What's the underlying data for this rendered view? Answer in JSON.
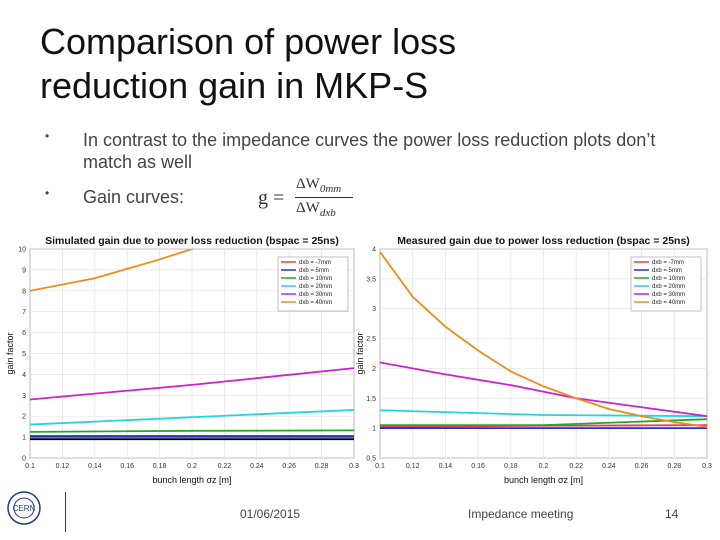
{
  "slide": {
    "title_line1": "Comparison of power loss",
    "title_line2": "reduction gain in MKP-S",
    "bullets": [
      "In contrast to the impedance curves the power loss reduction plots don’t match as well",
      "Gain curves:"
    ],
    "formula": {
      "lhs": "g =",
      "numerator": "ΔW",
      "numerator_sub": "0mm",
      "denominator": "ΔW",
      "denominator_sub": "dxb"
    },
    "footer": {
      "date": "01/06/2015",
      "meeting": "Impedance meeting",
      "page": "14"
    },
    "logo_text": "CERN"
  },
  "chart_data": [
    {
      "type": "line",
      "title": "Simulated gain due to power loss reduction (bspac = 25ns)",
      "xlabel": "bunch length σz [m]",
      "ylabel": "gain factor",
      "xlim": [
        0.1,
        0.3
      ],
      "ylim": [
        0,
        10
      ],
      "xticks": [
        "0.1",
        "0.12",
        "0.14",
        "0.16",
        "0.18",
        "0.2",
        "0.22",
        "0.24",
        "0.26",
        "0.28",
        "0.3"
      ],
      "yticks": [
        "0",
        "1",
        "2",
        "3",
        "4",
        "5",
        "6",
        "7",
        "8",
        "9",
        "10"
      ],
      "grid": true,
      "legend_position": "top-right",
      "series": [
        {
          "name": "dxb = -7mm",
          "color": "#e8403a",
          "x": [
            0.1,
            0.3
          ],
          "y": [
            1.0,
            1.0
          ]
        },
        {
          "name": "dxb = 5mm",
          "color": "#2233cc",
          "x": [
            0.1,
            0.3
          ],
          "y": [
            1.05,
            1.05
          ]
        },
        {
          "name": "dxb = 10mm",
          "color": "#22aa22",
          "x": [
            0.1,
            0.2,
            0.3
          ],
          "y": [
            1.25,
            1.3,
            1.32
          ]
        },
        {
          "name": "dxb = 20mm",
          "color": "#22d4e0",
          "x": [
            0.1,
            0.2,
            0.3
          ],
          "y": [
            1.6,
            1.95,
            2.3
          ]
        },
        {
          "name": "dxb = 30mm",
          "color": "#cc22cc",
          "x": [
            0.1,
            0.2,
            0.3
          ],
          "y": [
            2.8,
            3.5,
            4.3
          ]
        },
        {
          "name": "dxb = 40mm",
          "color": "#f08a1c",
          "x": [
            0.1,
            0.14,
            0.18,
            0.2,
            0.22
          ],
          "y": [
            8.0,
            8.6,
            9.5,
            10.0,
            10.7
          ]
        },
        {
          "name": "",
          "color": "#000000",
          "x": [
            0.1,
            0.3
          ],
          "y": [
            0.9,
            0.9
          ]
        }
      ]
    },
    {
      "type": "line",
      "title": "Measured gain due to power loss reduction (bspac = 25ns)",
      "xlabel": "bunch length σz [m]",
      "ylabel": "gain factor",
      "xlim": [
        0.1,
        0.3
      ],
      "ylim": [
        0.5,
        4
      ],
      "xticks": [
        "0.1",
        "0.12",
        "0.14",
        "0.16",
        "0.18",
        "0.2",
        "0.22",
        "0.24",
        "0.26",
        "0.28",
        "0.3"
      ],
      "yticks": [
        "0.5",
        "1",
        "1.5",
        "2",
        "2.5",
        "3",
        "3.5",
        "4"
      ],
      "grid": true,
      "legend_position": "top-right",
      "series": [
        {
          "name": "dxb = -7mm",
          "color": "#e8403a",
          "x": [
            0.1,
            0.2,
            0.3
          ],
          "y": [
            1.02,
            1.04,
            1.05
          ]
        },
        {
          "name": "dxb = 5mm",
          "color": "#2233cc",
          "x": [
            0.1,
            0.2,
            0.3
          ],
          "y": [
            1.0,
            1.0,
            1.0
          ]
        },
        {
          "name": "dxb = 10mm",
          "color": "#22aa22",
          "x": [
            0.1,
            0.2,
            0.3
          ],
          "y": [
            1.05,
            1.05,
            1.15
          ]
        },
        {
          "name": "dxb = 20mm",
          "color": "#22d4e0",
          "x": [
            0.1,
            0.2,
            0.3
          ],
          "y": [
            1.3,
            1.22,
            1.2
          ]
        },
        {
          "name": "dxb = 30mm",
          "color": "#cc22cc",
          "x": [
            0.1,
            0.14,
            0.18,
            0.22,
            0.26,
            0.3
          ],
          "y": [
            2.1,
            1.9,
            1.72,
            1.5,
            1.35,
            1.2
          ]
        },
        {
          "name": "dxb = 40mm",
          "color": "#f08a1c",
          "x": [
            0.1,
            0.12,
            0.14,
            0.16,
            0.18,
            0.2,
            0.22,
            0.24,
            0.26,
            0.28,
            0.3
          ],
          "y": [
            3.95,
            3.2,
            2.7,
            2.3,
            1.95,
            1.7,
            1.5,
            1.32,
            1.2,
            1.1,
            1.02
          ]
        }
      ]
    }
  ]
}
